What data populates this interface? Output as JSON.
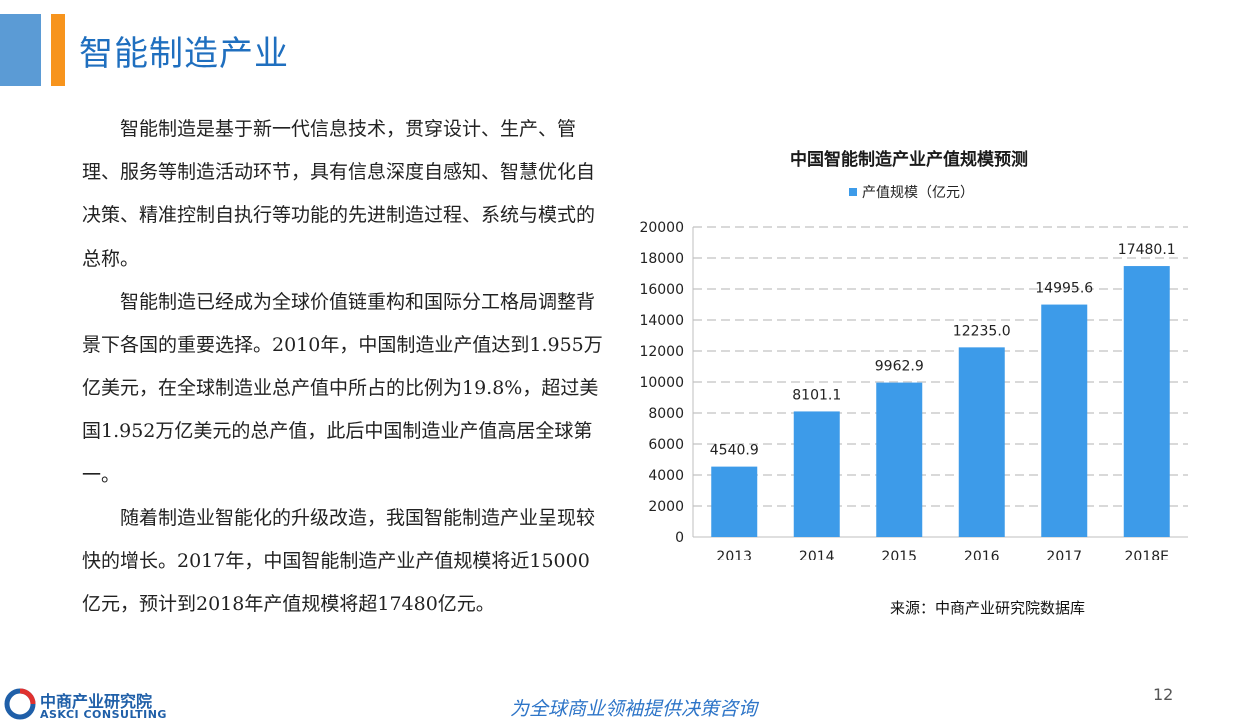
{
  "header": {
    "title": "智能制造产业"
  },
  "body": {
    "paragraphs": [
      "智能制造是基于新一代信息技术，贯穿设计、生产、管理、服务等制造活动环节，具有信息深度自感知、智慧优化自决策、精准控制自执行等功能的先进制造过程、系统与模式的总称。",
      "智能制造已经成为全球价值链重构和国际分工格局调整背景下各国的重要选择。2010年，中国制造业产值达到1.955万亿美元，在全球制造业总产值中所占的比例为19.8%，超过美国1.952万亿美元的总产值，此后中国制造业产值高居全球第一。",
      "随着制造业智能化的升级改造，我国智能制造产业呈现较快的增长。2017年，中国智能制造产业产值规模将近15000亿元，预计到2018年产值规模将超17480亿元。"
    ]
  },
  "chart_data": {
    "type": "bar",
    "title": "中国智能制造产业产值规模预测",
    "categories": [
      "2013",
      "2014",
      "2015",
      "2016",
      "2017",
      "2018E"
    ],
    "series": [
      {
        "name": "产值规模（亿元）",
        "values": [
          4540.9,
          8101.1,
          9962.9,
          12235.0,
          14995.6,
          17480.1
        ]
      }
    ],
    "data_labels": [
      "4540.9",
      "8101.1",
      "9962.9",
      "12235.0",
      "14995.6",
      "17480.1"
    ],
    "y_ticks": [
      "0",
      "2000",
      "4000",
      "6000",
      "8000",
      "10000",
      "12000",
      "14000",
      "16000",
      "18000",
      "20000"
    ],
    "ylim": [
      0,
      20000
    ],
    "grid": true,
    "legend_position": "top",
    "bar_color": "#3d9be9",
    "grid_color": "#d9d9d9"
  },
  "source_note": "来源：中商产业研究院数据库",
  "footer": {
    "logo_cn": "中商产业研究院",
    "logo_en": "ASKCI CONSULTING",
    "slogan": "为全球商业领袖提供决策咨询",
    "page_number": "12"
  },
  "colors": {
    "accent_blue": "#5b9bd5",
    "accent_orange": "#f7941d",
    "title_blue": "#1f6fbf",
    "logo_red": "#e0312e"
  }
}
